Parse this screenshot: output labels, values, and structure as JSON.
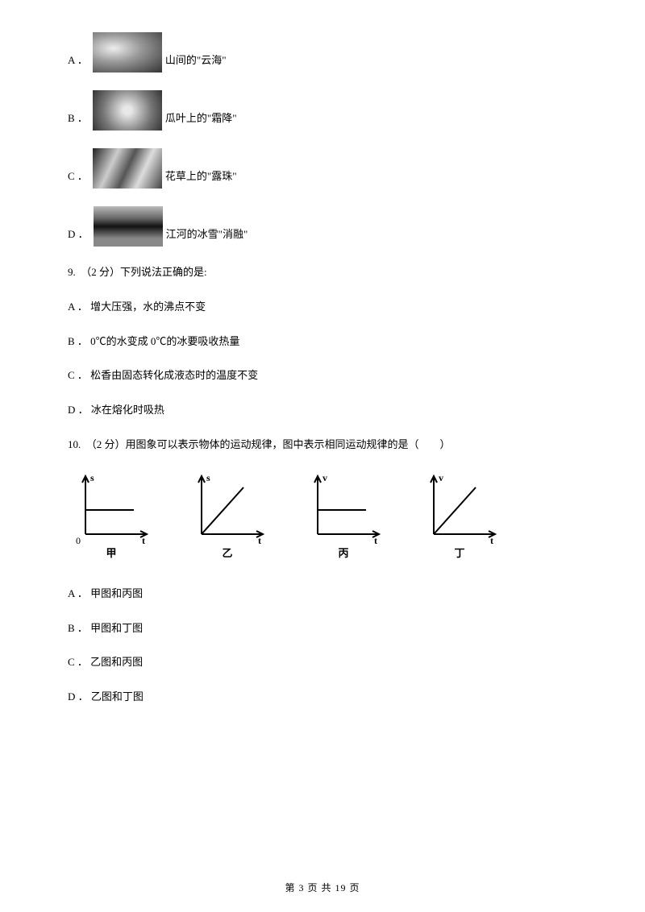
{
  "optionsWithImage": [
    {
      "label": "A ．",
      "text": "山间的\"云海\"",
      "thumbClass": "thumb-a"
    },
    {
      "label": "B ．",
      "text": "瓜叶上的\"霜降\"",
      "thumbClass": "thumb-b"
    },
    {
      "label": "C ．",
      "text": "花草上的\"露珠\"",
      "thumbClass": "thumb-c"
    },
    {
      "label": "D ．",
      "text": "江河的冰雪\"消融\"",
      "thumbClass": "thumb-d"
    }
  ],
  "q9": {
    "stem": "9.　（2 分）下列说法正确的是:",
    "opts": [
      "A ． 增大压强，水的沸点不变",
      "B ． 0℃的水变成 0℃的冰要吸收热量",
      "C ． 松香由固态转化成液态时的温度不变",
      "D ． 冰在熔化时吸热"
    ]
  },
  "q10": {
    "stem": "10.　（2 分）用图象可以表示物体的运动规律，图中表示相同运动规律的是（　　）",
    "graphs": [
      {
        "label": "甲",
        "yAxis": "s",
        "xAxis": "t",
        "type": "flat"
      },
      {
        "label": "乙",
        "yAxis": "s",
        "xAxis": "t",
        "type": "rise"
      },
      {
        "label": "丙",
        "yAxis": "v",
        "xAxis": "t",
        "type": "flat"
      },
      {
        "label": "丁",
        "yAxis": "v",
        "xAxis": "t",
        "type": "rise"
      }
    ],
    "opts": [
      "A ． 甲图和丙图",
      "B ． 甲图和丁图",
      "C ． 乙图和丙图",
      "D ． 乙图和丁图"
    ]
  },
  "graphStyle": {
    "stroke": "#000000",
    "strokeWidth": 2,
    "axisFont": 12,
    "width": 100,
    "height": 90
  },
  "footer": "第 3 页 共 19 页"
}
